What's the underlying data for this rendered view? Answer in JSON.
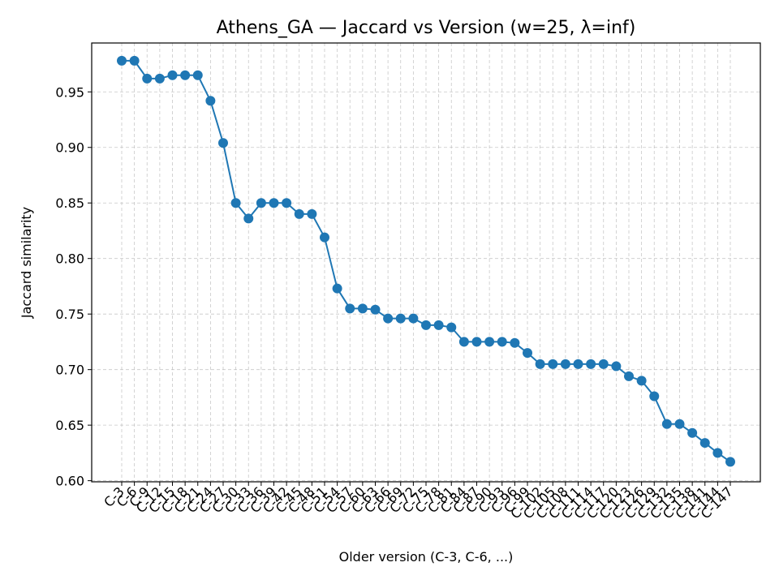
{
  "chart_data": {
    "type": "line",
    "title": "Athens_GA — Jaccard vs Version (w=25, λ=inf)",
    "xlabel": "Older version (C-3, C-6, ...)",
    "ylabel": "Jaccard similarity",
    "ylim": [
      0.599,
      0.994
    ],
    "yticks": [
      0.6,
      0.65,
      0.7,
      0.75,
      0.8,
      0.85,
      0.9,
      0.95
    ],
    "grid": true,
    "categories": [
      "C-3",
      "C-6",
      "C-9",
      "C-12",
      "C-15",
      "C-18",
      "C-21",
      "C-24",
      "C-27",
      "C-30",
      "C-33",
      "C-36",
      "C-39",
      "C-42",
      "C-45",
      "C-48",
      "C-51",
      "C-54",
      "C-57",
      "C-60",
      "C-63",
      "C-66",
      "C-69",
      "C-72",
      "C-75",
      "C-78",
      "C-81",
      "C-84",
      "C-87",
      "C-90",
      "C-93",
      "C-96",
      "C-99",
      "C-102",
      "C-105",
      "C-108",
      "C-111",
      "C-114",
      "C-117",
      "C-120",
      "C-123",
      "C-126",
      "C-129",
      "C-132",
      "C-135",
      "C-138",
      "C-141",
      "C-144",
      "C-147"
    ],
    "series": [
      {
        "color": "#1f77b4",
        "values": [
          0.978,
          0.978,
          0.962,
          0.962,
          0.965,
          0.965,
          0.965,
          0.942,
          0.904,
          0.85,
          0.836,
          0.85,
          0.85,
          0.85,
          0.84,
          0.84,
          0.819,
          0.773,
          0.755,
          0.755,
          0.754,
          0.746,
          0.746,
          0.746,
          0.74,
          0.74,
          0.738,
          0.725,
          0.725,
          0.725,
          0.725,
          0.724,
          0.715,
          0.705,
          0.705,
          0.705,
          0.705,
          0.705,
          0.705,
          0.703,
          0.694,
          0.69,
          0.676,
          0.651,
          0.651,
          0.643,
          0.634,
          0.625,
          0.617
        ]
      }
    ]
  }
}
